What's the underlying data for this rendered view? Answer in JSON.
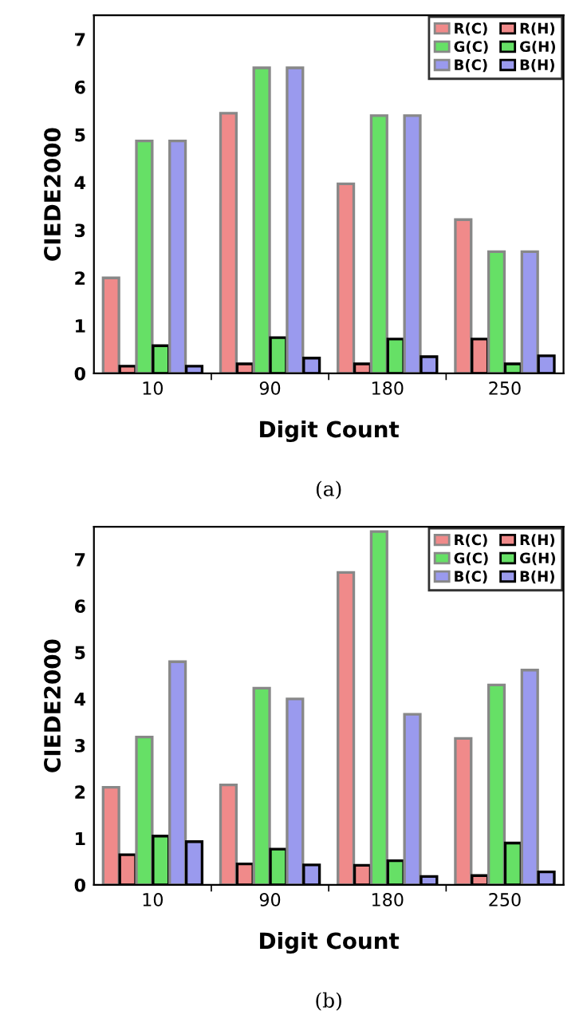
{
  "chart_data": [
    {
      "type": "bar",
      "xlabel": "Digit Count",
      "ylabel": "CIEDE2000",
      "categories": [
        "10",
        "90",
        "180",
        "250"
      ],
      "ylim": [
        0,
        7.5
      ],
      "yticks": [
        0,
        1,
        2,
        3,
        4,
        5,
        6,
        7
      ],
      "legend": "top right",
      "grid": false,
      "annotations": [
        "(a)"
      ],
      "series": [
        {
          "name": "R(C)",
          "color": "#f08a8a",
          "values": [
            2.0,
            5.45,
            3.97,
            3.22
          ]
        },
        {
          "name": "R(H)",
          "color": "#f08a8a",
          "values": [
            0.15,
            0.2,
            0.2,
            0.72
          ]
        },
        {
          "name": "G(C)",
          "color": "#66e066",
          "values": [
            4.87,
            6.4,
            5.4,
            2.55
          ]
        },
        {
          "name": "G(H)",
          "color": "#66e066",
          "values": [
            0.58,
            0.75,
            0.72,
            0.2
          ]
        },
        {
          "name": "B(C)",
          "color": "#9a9aee",
          "values": [
            4.87,
            6.4,
            5.4,
            2.55
          ]
        },
        {
          "name": "B(H)",
          "color": "#9a9aee",
          "values": [
            0.15,
            0.32,
            0.35,
            0.37
          ]
        }
      ]
    },
    {
      "type": "bar",
      "xlabel": "Digit Count",
      "ylabel": "CIEDE2000",
      "categories": [
        "10",
        "90",
        "180",
        "250"
      ],
      "ylim": [
        0,
        7.7
      ],
      "yticks": [
        0,
        1,
        2,
        3,
        4,
        5,
        6,
        7
      ],
      "legend": "top right",
      "grid": false,
      "annotations": [
        "(b)"
      ],
      "series": [
        {
          "name": "R(C)",
          "color": "#f08a8a",
          "values": [
            2.1,
            2.15,
            6.72,
            3.15
          ]
        },
        {
          "name": "R(H)",
          "color": "#f08a8a",
          "values": [
            0.65,
            0.45,
            0.42,
            0.2
          ]
        },
        {
          "name": "G(C)",
          "color": "#66e066",
          "values": [
            3.18,
            4.23,
            7.6,
            4.3
          ]
        },
        {
          "name": "G(H)",
          "color": "#66e066",
          "values": [
            1.05,
            0.77,
            0.52,
            0.9
          ]
        },
        {
          "name": "B(C)",
          "color": "#9a9aee",
          "values": [
            4.8,
            4.0,
            3.67,
            4.62
          ]
        },
        {
          "name": "B(H)",
          "color": "#9a9aee",
          "values": [
            0.93,
            0.43,
            0.18,
            0.28
          ]
        }
      ]
    }
  ]
}
